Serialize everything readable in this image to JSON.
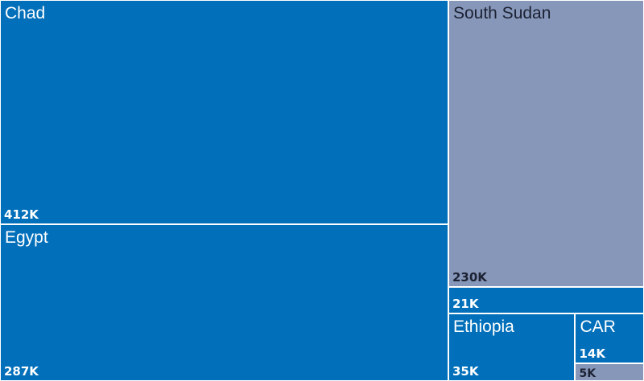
{
  "chart_data": {
    "type": "treemap",
    "title": "",
    "colors": {
      "blue": "#016fba",
      "gray": "#8797b9",
      "border": "#ffffff"
    },
    "items": [
      {
        "name": "Chad",
        "value": 412000,
        "value_label": "412K",
        "color": "blue"
      },
      {
        "name": "Egypt",
        "value": 287000,
        "value_label": "287K",
        "color": "blue"
      },
      {
        "name": "South Sudan",
        "value": 230000,
        "value_label": "230K",
        "color": "gray"
      },
      {
        "name": "",
        "value": 21000,
        "value_label": "21K",
        "color": "blue"
      },
      {
        "name": "Ethiopia",
        "value": 35000,
        "value_label": "35K",
        "color": "blue"
      },
      {
        "name": "CAR",
        "value": 14000,
        "value_label": "14K",
        "color": "blue"
      },
      {
        "name": "",
        "value": 5000,
        "value_label": "5K",
        "color": "gray"
      }
    ]
  }
}
